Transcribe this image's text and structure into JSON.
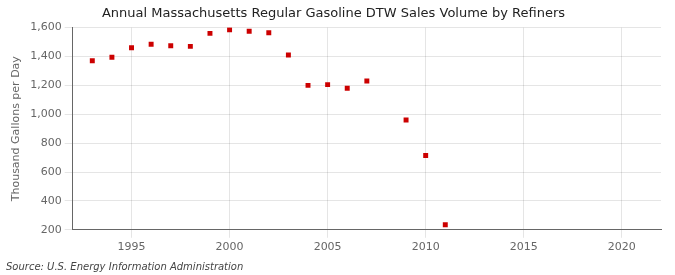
{
  "chart_data": {
    "type": "scatter",
    "title": "Annual Massachusetts Regular Gasoline DTW Sales Volume by Refiners",
    "ylabel": "Thousand Gallons per Day",
    "annotations": [
      "Source: U.S. Energy Information Administration"
    ],
    "x": [
      1993,
      1994,
      1995,
      1996,
      1997,
      1998,
      1999,
      2000,
      2001,
      2002,
      2003,
      2004,
      2005,
      2006,
      2007,
      2009,
      2010,
      2011
    ],
    "values": [
      1370,
      1395,
      1460,
      1485,
      1475,
      1470,
      1560,
      1585,
      1575,
      1565,
      1410,
      1200,
      1205,
      1180,
      1230,
      960,
      715,
      235
    ],
    "color": "#cc0000",
    "marker": "square",
    "xlim": [
      1992,
      2022
    ],
    "xticks": [
      1995,
      2000,
      2005,
      2010,
      2015,
      2020
    ],
    "ylim": [
      200,
      1600
    ],
    "yticks": [
      200,
      400,
      600,
      800,
      {
        "value": 1000,
        "label": "1,000"
      },
      {
        "value": 1200,
        "label": "1,200"
      },
      {
        "value": 1400,
        "label": "1,400"
      },
      {
        "value": 1600,
        "label": "1,600"
      }
    ],
    "grid": true
  }
}
